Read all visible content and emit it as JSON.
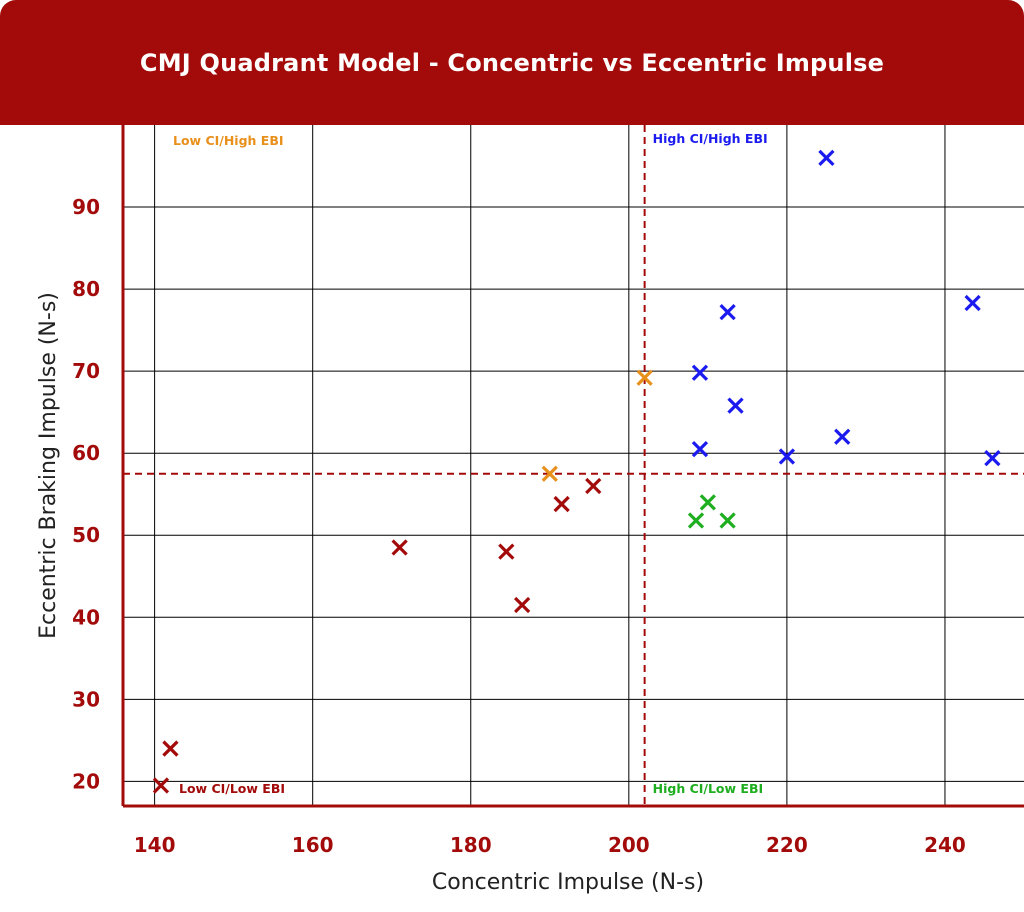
{
  "chart_data": {
    "type": "scatter",
    "title": "CMJ Quadrant Model - Concentric vs Eccentric Impulse",
    "xlabel": "Concentric Impulse (N-s)",
    "ylabel": "Eccentric Braking Impulse (N-s)",
    "xlim": [
      136,
      250
    ],
    "ylim": [
      17,
      100
    ],
    "xticks": [
      140,
      160,
      180,
      200,
      220,
      240
    ],
    "yticks": [
      20,
      30,
      40,
      50,
      60,
      70,
      80,
      90
    ],
    "grid": true,
    "thresholds": {
      "x": 202,
      "y": 57.5
    },
    "quadrant_labels": [
      {
        "name": "low-ci-high-ebi",
        "text": "Low CI/High EBI",
        "color": "#e8901c"
      },
      {
        "name": "high-ci-high-ebi",
        "text": "High CI/High EBI",
        "color": "#1b1bf0"
      },
      {
        "name": "low-ci-low-ebi",
        "text": "Low CI/Low EBI",
        "color": "#a30b0b"
      },
      {
        "name": "high-ci-low-ebi",
        "text": "High CI/Low EBI",
        "color": "#1fae1f"
      }
    ],
    "series": [
      {
        "color": "#a30b0b",
        "points": [
          [
            140.8,
            19.5
          ],
          [
            142,
            24
          ],
          [
            171,
            48.5
          ],
          [
            184.5,
            48
          ],
          [
            186.5,
            41.5
          ],
          [
            191.5,
            53.8
          ],
          [
            195.5,
            56
          ]
        ]
      },
      {
        "color": "#e8901c",
        "points": [
          [
            190,
            57.5
          ],
          [
            202,
            69.2
          ]
        ]
      },
      {
        "color": "#1fae1f",
        "points": [
          [
            208.5,
            51.8
          ],
          [
            210,
            54
          ],
          [
            212.5,
            51.8
          ]
        ]
      },
      {
        "color": "#1b1bf0",
        "points": [
          [
            209,
            69.8
          ],
          [
            209,
            60.5
          ],
          [
            212.5,
            77.2
          ],
          [
            213.5,
            65.8
          ],
          [
            220,
            59.6
          ],
          [
            225,
            96
          ],
          [
            227,
            62
          ],
          [
            243.5,
            78.3
          ],
          [
            246,
            59.4
          ]
        ]
      }
    ]
  },
  "colors": {
    "brand": "#a30b0b",
    "axis_text": "#a30b0b",
    "grid": "#000000"
  }
}
